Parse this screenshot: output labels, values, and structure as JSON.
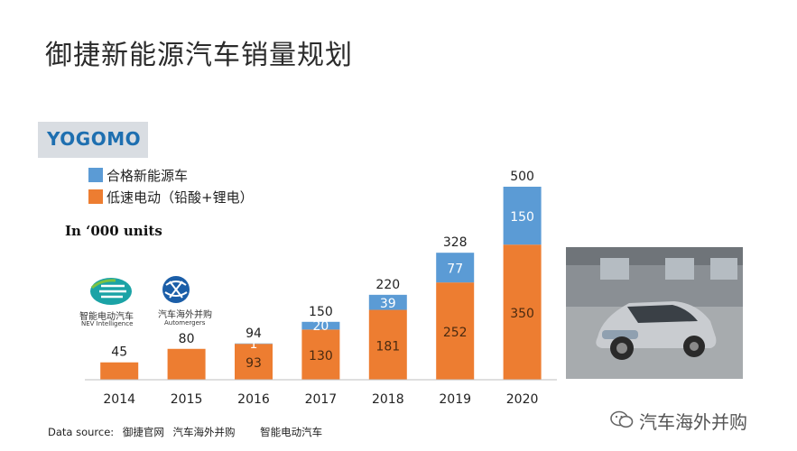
{
  "title": "御捷新能源汽车销量规划",
  "logo": {
    "text": "YOGOMO"
  },
  "units_label": "In  ‘000 units",
  "brands": {
    "nev_cn": "智能电动汽车",
    "nev_en": "NEV Intelligence",
    "auto_cn": "汽车海外并购",
    "auto_en": "Automergers"
  },
  "source": {
    "prefix": "Data source:",
    "items": [
      "御捷官网",
      "汽车海外并购",
      "智能电动汽车"
    ]
  },
  "watermark": "汽车海外并购",
  "colors": {
    "blue": "#5b9bd5",
    "orange": "#ed7d31"
  },
  "chart_data": {
    "type": "bar",
    "stacked": true,
    "categories": [
      "2014",
      "2015",
      "2016",
      "2017",
      "2018",
      "2019",
      "2020"
    ],
    "series": [
      {
        "name": "低速电动（铅酸+锂电）",
        "color": "#ed7d31",
        "values": [
          45,
          80,
          93,
          130,
          181,
          252,
          350
        ],
        "show_labels": [
          false,
          false,
          true,
          true,
          true,
          true,
          true
        ]
      },
      {
        "name": "合格新能源车",
        "color": "#5b9bd5",
        "values": [
          0,
          0,
          1,
          20,
          39,
          77,
          150
        ],
        "show_labels": [
          false,
          false,
          true,
          true,
          true,
          true,
          true
        ]
      }
    ],
    "totals": [
      45,
      80,
      94,
      150,
      220,
      328,
      500
    ],
    "ylim": [
      0,
      500
    ],
    "legend_position": "top-left",
    "grid": false
  }
}
